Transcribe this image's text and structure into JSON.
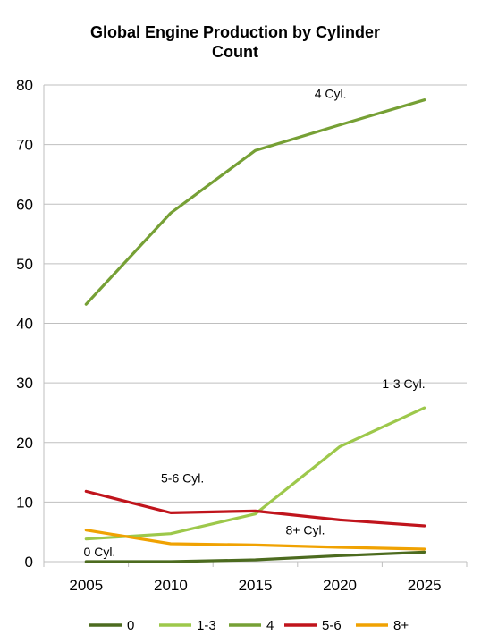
{
  "chart_data": {
    "type": "line",
    "title_lines": [
      "Global Engine Production by Cylinder",
      "Count"
    ],
    "xlabel": "",
    "ylabel": "",
    "x": [
      2005,
      2010,
      2015,
      2020,
      2025
    ],
    "xlim": [
      2002.5,
      2027.5
    ],
    "ylim": [
      0,
      80
    ],
    "yticks": [
      0,
      10,
      20,
      30,
      40,
      50,
      60,
      70,
      80
    ],
    "grid": true,
    "legend_position": "bottom",
    "series": [
      {
        "name": "0",
        "color": "#4c6b1f",
        "values": [
          0,
          0,
          0.3,
          1.0,
          1.6
        ],
        "annotation": "0 Cyl."
      },
      {
        "name": "1-3",
        "color": "#9dc84b",
        "values": [
          3.8,
          4.7,
          8.0,
          19.3,
          25.8
        ],
        "annotation": "1-3 Cyl."
      },
      {
        "name": "4",
        "color": "#76a035",
        "values": [
          43.2,
          58.5,
          69.0,
          73.3,
          77.5
        ],
        "annotation": "4 Cyl."
      },
      {
        "name": "5-6",
        "color": "#c0141c",
        "values": [
          11.8,
          8.2,
          8.5,
          7.0,
          6.0
        ],
        "annotation": "5-6 Cyl."
      },
      {
        "name": "8+",
        "color": "#f0a202",
        "values": [
          5.3,
          3.0,
          2.8,
          2.4,
          2.1
        ],
        "annotation": "8+ Cyl."
      }
    ]
  }
}
